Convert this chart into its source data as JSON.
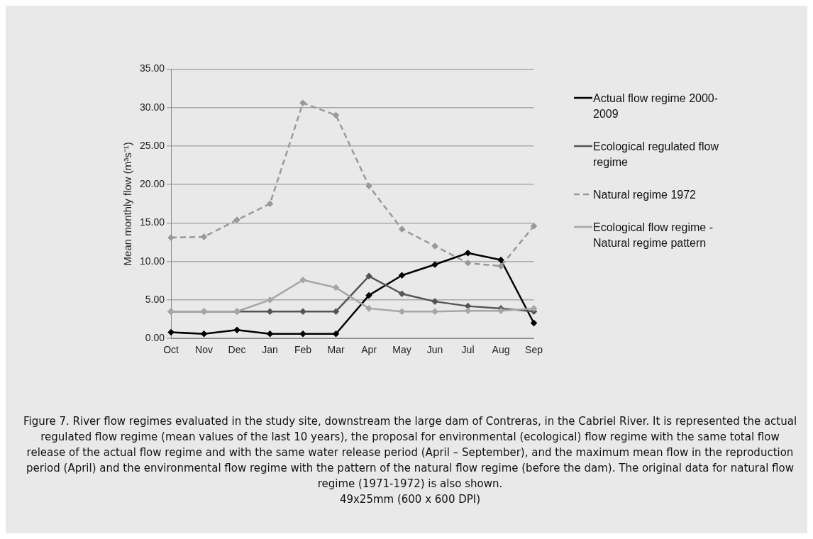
{
  "chart_data": {
    "type": "line",
    "ylabel": "Mean monthly flow (m³s⁻¹)",
    "categories": [
      "Oct",
      "Nov",
      "Dec",
      "Jan",
      "Feb",
      "Mar",
      "Apr",
      "May",
      "Jun",
      "Jul",
      "Aug",
      "Sep"
    ],
    "series": [
      {
        "name": "Actual flow regime 2000-2009",
        "color": "#000000",
        "line_style": "solid",
        "values": [
          0.8,
          0.6,
          1.1,
          0.6,
          0.6,
          0.6,
          5.6,
          8.2,
          9.6,
          11.1,
          10.2,
          2.0
        ]
      },
      {
        "name": "Ecological regulated flow regime",
        "color": "#555555",
        "line_style": "solid",
        "values": [
          3.5,
          3.5,
          3.5,
          3.5,
          3.5,
          3.5,
          8.1,
          5.8,
          4.8,
          4.2,
          3.9,
          3.5
        ]
      },
      {
        "name": "Natural regime 1972",
        "color": "#999999",
        "line_style": "dashed",
        "values": [
          13.1,
          13.2,
          15.4,
          17.5,
          30.6,
          29.0,
          19.8,
          14.2,
          12.0,
          9.8,
          9.4,
          14.6
        ]
      },
      {
        "name": "Ecological flow regime - Natural regime pattern",
        "color": "#a6a6a6",
        "line_style": "solid",
        "values": [
          3.5,
          3.5,
          3.5,
          5.0,
          7.6,
          6.6,
          3.9,
          3.5,
          3.5,
          3.6,
          3.6,
          3.9
        ]
      }
    ],
    "ylim": [
      0,
      35
    ],
    "yticks": [
      {
        "value": 0,
        "label": "0.00"
      },
      {
        "value": 5,
        "label": "5.00"
      },
      {
        "value": 10,
        "label": "10.00"
      },
      {
        "value": 15,
        "label": "15.00"
      },
      {
        "value": 20,
        "label": "20.00"
      },
      {
        "value": 25,
        "label": "25.00"
      },
      {
        "value": 30,
        "label": "30.00"
      },
      {
        "value": 35,
        "label": "35.00"
      }
    ],
    "grid": "y",
    "legend": "right",
    "marker": "diamond",
    "annotations": [
      "Figure 7. River flow regimes evaluated in the study site, downstream the large dam of Contreras, in the Cabriel River. It is represented the actual regulated flow regime (mean values of the last 10 years), the proposal for environmental (ecological) flow regime with the same total flow release of the actual flow regime and with the same water release period (April – September), and the maximum mean flow in the reproduction period (April) and the environmental flow regime with the pattern of the natural flow regime (before the dam). The original data for natural flow regime (1971-1972) is also shown.",
      "49x25mm (600 x 600 DPI)"
    ]
  }
}
